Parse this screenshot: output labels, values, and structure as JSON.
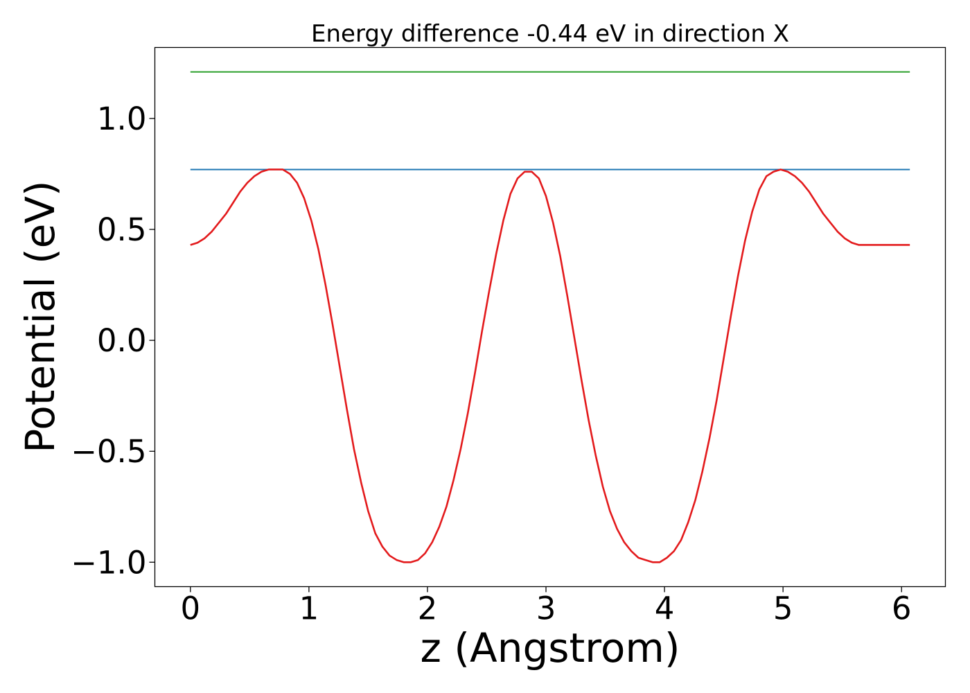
{
  "chart_data": {
    "type": "line",
    "title": "Energy difference -0.44 eV in direction X",
    "xlabel": "z (Angstrom)",
    "ylabel": "Potential (eV)",
    "xlim": [
      -0.3,
      6.37
    ],
    "ylim": [
      -1.11,
      1.32
    ],
    "x_ticks": [
      0,
      1,
      2,
      3,
      4,
      5,
      6
    ],
    "x_tick_labels": [
      "0",
      "1",
      "2",
      "3",
      "4",
      "5",
      "6"
    ],
    "y_ticks": [
      -1.0,
      -0.5,
      0.0,
      0.5,
      1.0
    ],
    "y_tick_labels": [
      "−1.0",
      "−0.5",
      "0.0",
      "0.5",
      "1.0"
    ],
    "grid": false,
    "series": [
      {
        "color": "#2ca02c",
        "style": "horizontal",
        "x": [
          0,
          6.07
        ],
        "y": [
          1.21,
          1.21
        ]
      },
      {
        "color": "#1f77b4",
        "style": "horizontal",
        "x": [
          0,
          6.07
        ],
        "y": [
          0.77,
          0.77
        ]
      },
      {
        "color": "#e31a1c",
        "style": "curve",
        "x": [
          0.0,
          0.06,
          0.12,
          0.18,
          0.24,
          0.3,
          0.36,
          0.42,
          0.48,
          0.54,
          0.6,
          0.66,
          0.72,
          0.78,
          0.84,
          0.9,
          0.96,
          1.02,
          1.08,
          1.14,
          1.2,
          1.26,
          1.32,
          1.38,
          1.44,
          1.5,
          1.56,
          1.62,
          1.68,
          1.74,
          1.8,
          1.86,
          1.92,
          1.98,
          2.04,
          2.1,
          2.16,
          2.22,
          2.28,
          2.34,
          2.4,
          2.46,
          2.52,
          2.58,
          2.64,
          2.7,
          2.76,
          2.82,
          2.88,
          2.94,
          3.0,
          3.06,
          3.12,
          3.18,
          3.24,
          3.3,
          3.36,
          3.42,
          3.48,
          3.54,
          3.6,
          3.66,
          3.72,
          3.78,
          3.84,
          3.9,
          3.96,
          4.02,
          4.08,
          4.14,
          4.2,
          4.26,
          4.32,
          4.38,
          4.44,
          4.5,
          4.56,
          4.62,
          4.68,
          4.74,
          4.8,
          4.86,
          4.92,
          4.98,
          5.04,
          5.1,
          5.16,
          5.22,
          5.28,
          5.34,
          5.4,
          5.46,
          5.52,
          5.58,
          5.64,
          5.7,
          5.76,
          5.82,
          5.88,
          5.94,
          6.0,
          6.07
        ],
        "y": [
          0.43,
          0.44,
          0.46,
          0.49,
          0.53,
          0.57,
          0.62,
          0.67,
          0.71,
          0.74,
          0.76,
          0.77,
          0.77,
          0.77,
          0.75,
          0.71,
          0.64,
          0.54,
          0.41,
          0.25,
          0.07,
          -0.12,
          -0.31,
          -0.49,
          -0.64,
          -0.77,
          -0.87,
          -0.93,
          -0.97,
          -0.99,
          -1.0,
          -1.0,
          -0.99,
          -0.96,
          -0.91,
          -0.84,
          -0.75,
          -0.63,
          -0.49,
          -0.33,
          -0.15,
          0.04,
          0.22,
          0.39,
          0.54,
          0.66,
          0.73,
          0.76,
          0.76,
          0.73,
          0.65,
          0.53,
          0.38,
          0.2,
          0.01,
          -0.18,
          -0.36,
          -0.52,
          -0.66,
          -0.77,
          -0.85,
          -0.91,
          -0.95,
          -0.98,
          -0.99,
          -1.0,
          -1.0,
          -0.98,
          -0.95,
          -0.9,
          -0.82,
          -0.72,
          -0.59,
          -0.44,
          -0.27,
          -0.08,
          0.11,
          0.29,
          0.45,
          0.58,
          0.68,
          0.74,
          0.76,
          0.77,
          0.76,
          0.74,
          0.71,
          0.67,
          0.62,
          0.57,
          0.53,
          0.49,
          0.46,
          0.44,
          0.43,
          0.43,
          0.43,
          0.43,
          0.43,
          0.43,
          0.43,
          0.43
        ]
      }
    ]
  }
}
